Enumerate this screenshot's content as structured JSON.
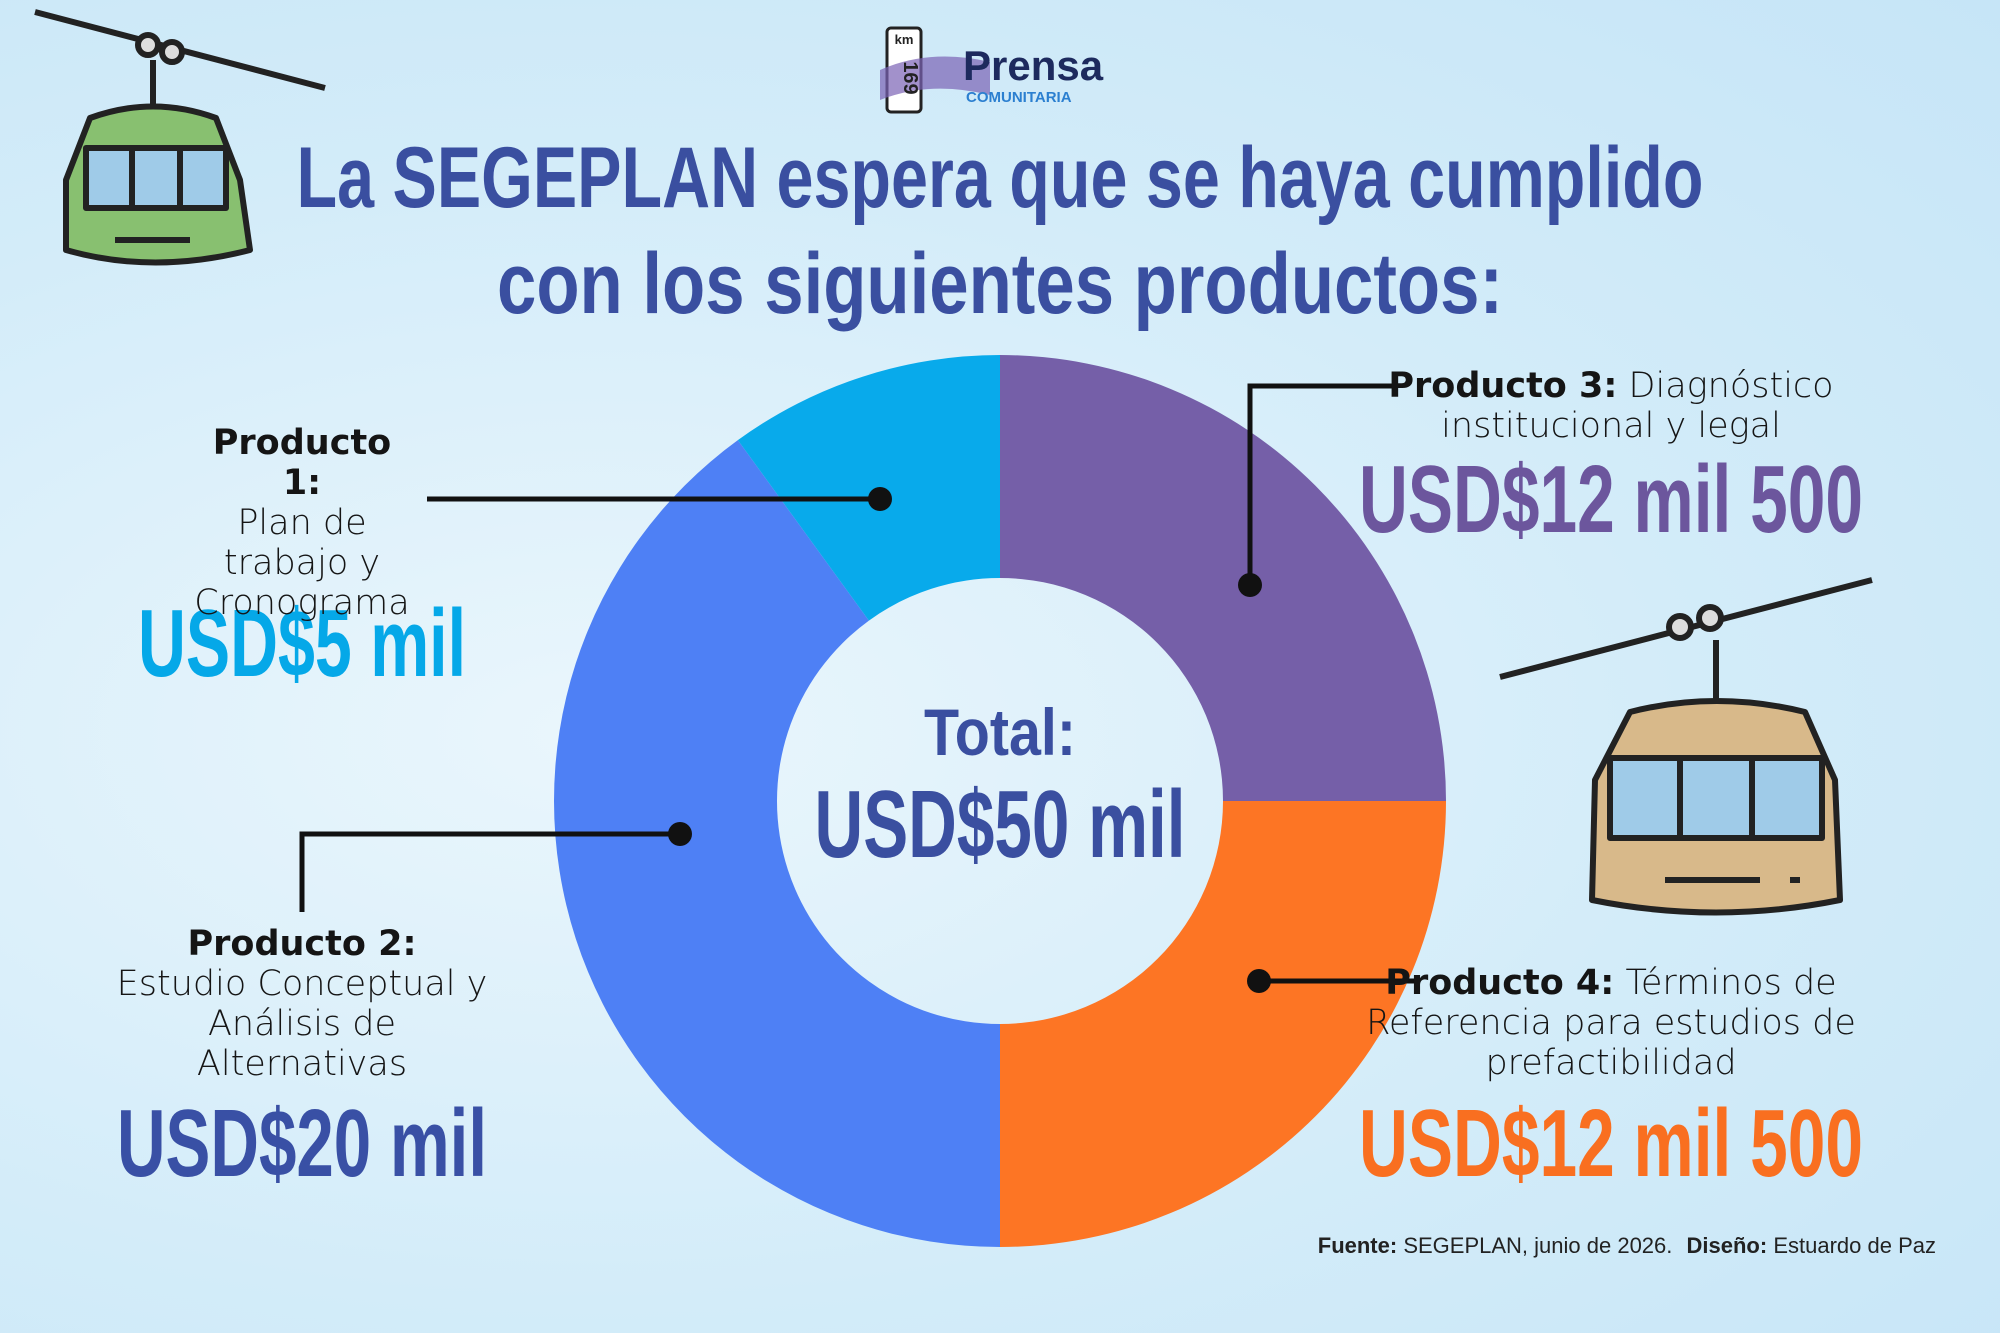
{
  "logo": {
    "km": "km",
    "number": "169",
    "name": "Prensa",
    "subtitle": "COMUNITARIA"
  },
  "chart_data": {
    "type": "donut",
    "title": [
      "La SEGEPLAN espera que se haya cumplido",
      "con los siguientes productos:"
    ],
    "categories": [
      "Producto 3:",
      "Producto 4:",
      "Producto 2:",
      "Producto 1:"
    ],
    "descriptions": [
      "Diagnóstico institucional y legal",
      "Términos de Referencia para estudios de prefactibilidad",
      "Estudio Conceptual y Análisis de Alternativas",
      "Plan de trabajo y Cronograma"
    ],
    "values": [
      12500,
      12500,
      20000,
      5000
    ],
    "value_labels": [
      "USD$12 mil 500",
      "USD$12 mil 500",
      "USD$20 mil",
      "USD$5 mil"
    ],
    "colors": [
      "#755fa8",
      "#fd7524",
      "#4e80f5",
      "#08aaeb"
    ],
    "value_label_colors": [
      "#6c569d",
      "#f96f20",
      "#3950a5",
      "#05a8e8"
    ],
    "center_title": "Total:",
    "center_label": "USD$50 mil"
  },
  "footer": {
    "source_label": "Fuente:",
    "source": "SEGEPLAN, junio de 2026.",
    "design_label": "Diseño:",
    "design": "Estuardo de Paz"
  }
}
